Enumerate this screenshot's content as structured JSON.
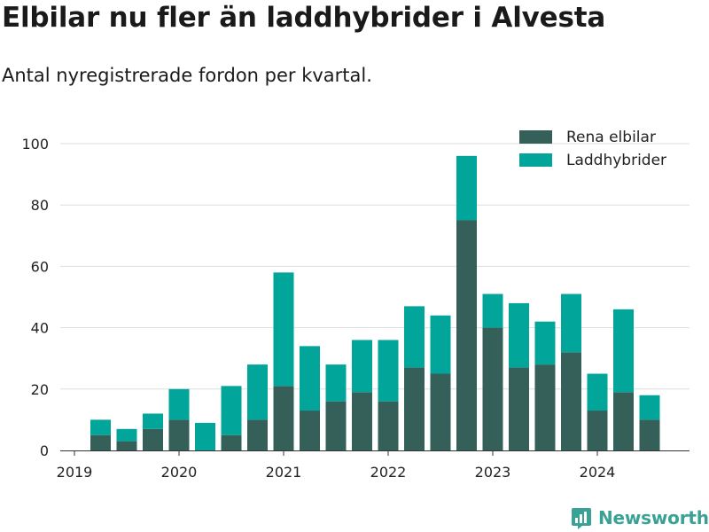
{
  "title": "Elbilar nu fler än laddhybrider i Alvesta",
  "subtitle": "Antal nyregistrerade fordon per kvartal.",
  "brand": "Newsworthy",
  "colors": {
    "elbilar": "#35605a",
    "laddhybrider": "#02a59a",
    "grid": "#dddddd",
    "brand": "#3aa294"
  },
  "chart_data": {
    "type": "bar",
    "stacked": true,
    "categories": [
      "2019 Q2",
      "2019 Q3",
      "2019 Q4",
      "2020 Q1",
      "2020 Q2",
      "2020 Q3",
      "2020 Q4",
      "2021 Q1",
      "2021 Q2",
      "2021 Q3",
      "2021 Q4",
      "2022 Q1",
      "2022 Q2",
      "2022 Q3",
      "2022 Q4",
      "2023 Q1",
      "2023 Q2",
      "2023 Q3",
      "2023 Q4",
      "2024 Q1",
      "2024 Q2",
      "2024 Q3"
    ],
    "series": [
      {
        "name": "Rena elbilar",
        "values": [
          5,
          3,
          7,
          10,
          0,
          5,
          10,
          21,
          13,
          16,
          19,
          16,
          27,
          25,
          75,
          40,
          27,
          28,
          32,
          13,
          19,
          10
        ]
      },
      {
        "name": "Laddhybrider",
        "values": [
          5,
          4,
          5,
          10,
          9,
          16,
          18,
          37,
          21,
          12,
          17,
          20,
          20,
          19,
          21,
          11,
          21,
          14,
          19,
          12,
          27,
          8
        ]
      }
    ],
    "x_tick_labels": [
      "2019",
      "2020",
      "2021",
      "2022",
      "2023",
      "2024"
    ],
    "y_ticks": [
      0,
      20,
      40,
      60,
      80,
      100
    ],
    "ylim": [
      0,
      100
    ],
    "legend_position": "top-right",
    "xlabel": "",
    "ylabel": ""
  }
}
